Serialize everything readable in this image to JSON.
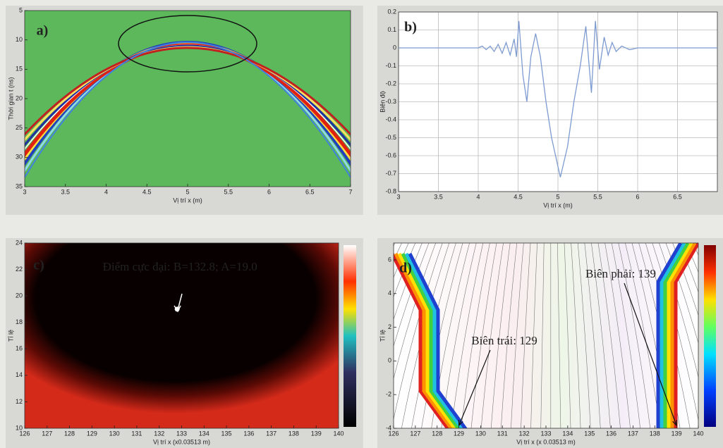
{
  "chart_data": [
    {
      "type": "heatmap",
      "panel_label": "a)",
      "xlabel": "Vị trí x (m)",
      "ylabel": "Thời gian t (ns)",
      "xlim": [
        3,
        7
      ],
      "xticks": [
        3,
        3.5,
        4,
        4.5,
        5,
        5.5,
        6,
        6.5,
        7
      ],
      "ylim": [
        35,
        5
      ],
      "yticks": [
        5,
        10,
        15,
        20,
        25,
        30,
        35
      ]
    },
    {
      "type": "line",
      "panel_label": "b)",
      "xlabel": "Vị trí x (m)",
      "ylabel": "Biên độ",
      "color": "#7d9bd1",
      "grid": true,
      "x": [
        3,
        4,
        4.05,
        4.1,
        4.15,
        4.2,
        4.25,
        4.3,
        4.35,
        4.4,
        4.45,
        4.48,
        4.51,
        4.56,
        4.61,
        4.66,
        4.72,
        4.78,
        4.85,
        4.92,
        5.03,
        5.12,
        5.2,
        5.28,
        5.35,
        5.42,
        5.47,
        5.52,
        5.58,
        5.63,
        5.68,
        5.73,
        5.8,
        5.9,
        6,
        7
      ],
      "values": [
        0,
        0,
        0.01,
        -0.01,
        0.01,
        -0.02,
        0.02,
        -0.03,
        0.03,
        -0.04,
        0.05,
        -0.05,
        0.15,
        -0.15,
        -0.3,
        -0.05,
        0.08,
        -0.05,
        -0.3,
        -0.5,
        -0.72,
        -0.55,
        -0.3,
        -0.1,
        0.12,
        -0.25,
        0.15,
        -0.12,
        0.06,
        -0.04,
        0.03,
        -0.02,
        0.01,
        -0.01,
        0,
        0
      ],
      "xlim": [
        3,
        7
      ],
      "xticks": [
        3,
        3.5,
        4,
        4.5,
        5,
        5.5,
        6,
        6.5
      ],
      "ylim": [
        -0.8,
        0.2
      ],
      "yticks": [
        0.2,
        0.1,
        0,
        -0.1,
        -0.2,
        -0.3,
        -0.4,
        -0.5,
        -0.6,
        -0.7,
        -0.8
      ]
    },
    {
      "type": "heatmap",
      "panel_label": "c)",
      "xlabel": "Vị trí x (x0.03513 m)",
      "ylabel": "Tỉ lệ",
      "annotation": "Điểm cực đại: B=132.8; A=19.0",
      "point": {
        "x": 132.8,
        "y": 19.0
      },
      "xlim": [
        126,
        140
      ],
      "xticks": [
        126,
        127,
        128,
        129,
        130,
        131,
        132,
        133,
        134,
        135,
        136,
        137,
        138,
        139,
        140
      ],
      "ylim": [
        10,
        24
      ],
      "yticks": [
        10,
        12,
        14,
        16,
        18,
        20,
        22,
        24
      ]
    },
    {
      "type": "contour",
      "panel_label": "d)",
      "xlabel": "Vị trí x (x 0.03513 m)",
      "ylabel": "Tỉ lệ",
      "annotations": [
        "Biên trái: 129",
        "Biên phải: 139"
      ],
      "boundaries": [
        129,
        139
      ],
      "xlim": [
        126,
        140
      ],
      "xticks": [
        126,
        127,
        128,
        129,
        130,
        131,
        132,
        133,
        134,
        135,
        136,
        137,
        138,
        139,
        140
      ],
      "ylim": [
        -4,
        7
      ],
      "yticks": [
        -4,
        -2,
        0,
        2,
        4,
        6
      ]
    }
  ]
}
